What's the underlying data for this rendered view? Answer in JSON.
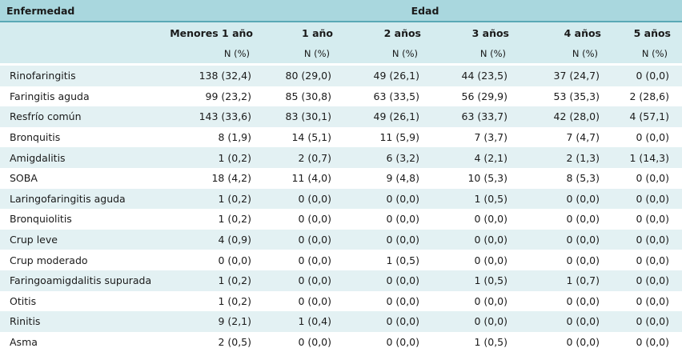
{
  "header": {
    "disease_label": "Enfermedad",
    "age_label": "Edad",
    "age_groups": [
      "Menores 1 año",
      "1 año",
      "2 años",
      "3 años",
      "4 años",
      "5 años"
    ],
    "unit_label": "N (%)"
  },
  "rows": [
    {
      "name": "Rinofaringitis",
      "values": [
        "138 (32,4)",
        "80 (29,0)",
        "49 (26,1)",
        "44 (23,5)",
        "37 (24,7)",
        "0 (0,0)"
      ]
    },
    {
      "name": "Faringitis aguda",
      "values": [
        "99 (23,2)",
        "85 (30,8)",
        "63 (33,5)",
        "56 (29,9)",
        "53 (35,3)",
        "2 (28,6)"
      ]
    },
    {
      "name": "Resfrío común",
      "values": [
        "143 (33,6)",
        "83 (30,1)",
        "49 (26,1)",
        "63 (33,7)",
        "42 (28,0)",
        "4 (57,1)"
      ]
    },
    {
      "name": "Bronquitis",
      "values": [
        "8 (1,9)",
        "14 (5,1)",
        "11 (5,9)",
        "7 (3,7)",
        "7 (4,7)",
        "0 (0,0)"
      ]
    },
    {
      "name": "Amigdalitis",
      "values": [
        "1 (0,2)",
        "2 (0,7)",
        "6 (3,2)",
        "4 (2,1)",
        "2 (1,3)",
        "1 (14,3)"
      ]
    },
    {
      "name": "SOBA",
      "values": [
        "18 (4,2)",
        "11 (4,0)",
        "9 (4,8)",
        "10 (5,3)",
        "8 (5,3)",
        "0 (0,0)"
      ]
    },
    {
      "name": "Laringofaringitis aguda",
      "values": [
        "1 (0,2)",
        "0 (0,0)",
        "0 (0,0)",
        "1 (0,5)",
        "0 (0,0)",
        "0 (0,0)"
      ]
    },
    {
      "name": "Bronquiolitis",
      "values": [
        "1 (0,2)",
        "0 (0,0)",
        "0 (0,0)",
        "0 (0,0)",
        "0 (0,0)",
        "0 (0,0)"
      ]
    },
    {
      "name": "Crup leve",
      "values": [
        "4 (0,9)",
        "0 (0,0)",
        "0 (0,0)",
        "0 (0,0)",
        "0 (0,0)",
        "0 (0,0)"
      ]
    },
    {
      "name": "Crup moderado",
      "values": [
        "0 (0,0)",
        "0 (0,0)",
        "1 (0,5)",
        "0 (0,0)",
        "0 (0,0)",
        "0 (0,0)"
      ]
    },
    {
      "name": "Faringoamigdalitis supurada",
      "values": [
        "1 (0,2)",
        "0 (0,0)",
        "0 (0,0)",
        "1 (0,5)",
        "1 (0,7)",
        "0 (0,0)"
      ]
    },
    {
      "name": "Otitis",
      "values": [
        "1 (0,2)",
        "0 (0,0)",
        "0 (0,0)",
        "0 (0,0)",
        "0 (0,0)",
        "0 (0,0)"
      ]
    },
    {
      "name": "Rinitis",
      "values": [
        "9 (2,1)",
        "1 (0,4)",
        "0 (0,0)",
        "0 (0,0)",
        "0 (0,0)",
        "0 (0,0)"
      ]
    },
    {
      "name": "Asma",
      "values": [
        "2 (0,5)",
        "0 (0,0)",
        "0 (0,0)",
        "1 (0,5)",
        "0 (0,0)",
        "0 (0,0)"
      ]
    }
  ]
}
